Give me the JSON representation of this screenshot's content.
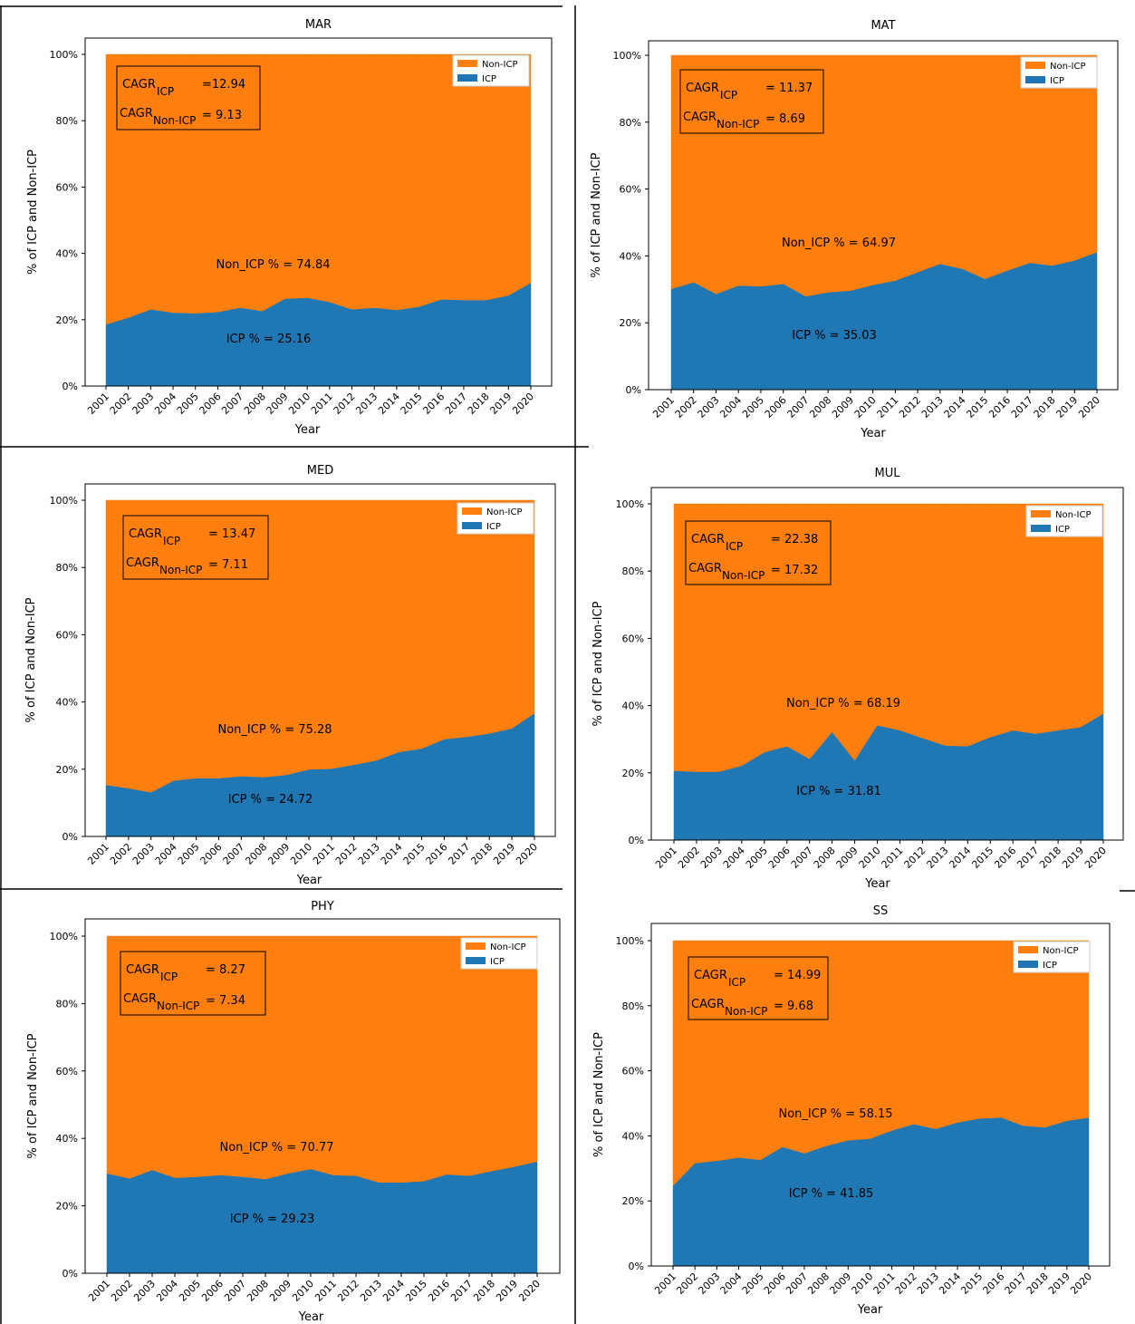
{
  "colors": {
    "icp": "#1f77b4",
    "non_icp": "#ff7f0e",
    "frame": "#000000"
  },
  "chart_data": [
    {
      "type": "area",
      "stacked": "percent",
      "title": "MAR",
      "xlabel": "Year",
      "ylabel": "% of ICP and Non-ICP",
      "x": [
        "2001",
        "2002",
        "2003",
        "2004",
        "2005",
        "2006",
        "2007",
        "2008",
        "2009",
        "2010",
        "2011",
        "2012",
        "2013",
        "2014",
        "2015",
        "2016",
        "2017",
        "2018",
        "2019",
        "2020"
      ],
      "yticks": [
        "0%",
        "20%",
        "40%",
        "60%",
        "80%",
        "100%"
      ],
      "ylim": [
        0,
        100
      ],
      "legend_position": "top-right",
      "series": [
        {
          "name": "ICP",
          "values": [
            18.5,
            20.5,
            23,
            22,
            21.8,
            22.2,
            23.5,
            22.5,
            26.2,
            26.5,
            25.2,
            23,
            23.5,
            22.8,
            23.8,
            26,
            25.8,
            25.8,
            27.2,
            31
          ]
        },
        {
          "name": "Non-ICP",
          "values": [
            81.5,
            79.5,
            77,
            78,
            78.2,
            77.8,
            76.5,
            77.5,
            73.8,
            73.5,
            74.8,
            77,
            76.5,
            77.2,
            76.2,
            74,
            74.2,
            74.2,
            72.8,
            69
          ]
        }
      ],
      "annotations": {
        "cagr_label": "CAGR",
        "cagr_icp_sub": "ICP",
        "cagr_icp_value": "=12.94",
        "cagr_non_sub": "Non-ICP",
        "cagr_non_value": "= 9.13",
        "non_icp_pct": "Non_ICP % = 74.84",
        "icp_pct": "ICP % = 25.16"
      }
    },
    {
      "type": "area",
      "stacked": "percent",
      "title": "MAT",
      "xlabel": "Year",
      "ylabel": "% of ICP and Non-ICP",
      "x": [
        "2001",
        "2002",
        "2003",
        "2004",
        "2005",
        "2006",
        "2007",
        "2008",
        "2009",
        "2010",
        "2011",
        "2012",
        "2013",
        "2014",
        "2015",
        "2016",
        "2017",
        "2018",
        "2019",
        "2020"
      ],
      "yticks": [
        "0%",
        "20%",
        "40%",
        "60%",
        "80%",
        "100%"
      ],
      "ylim": [
        0,
        100
      ],
      "legend_position": "top-right",
      "series": [
        {
          "name": "ICP",
          "values": [
            30,
            32,
            28.5,
            31,
            30.8,
            31.5,
            27.8,
            29,
            29.5,
            31.2,
            32.5,
            35,
            37.5,
            36,
            33,
            35.5,
            37.8,
            37,
            38.5,
            41
          ]
        },
        {
          "name": "Non-ICP",
          "values": [
            70,
            68,
            71.5,
            69,
            69.2,
            68.5,
            72.2,
            71,
            70.5,
            68.8,
            67.5,
            65,
            62.5,
            64,
            67,
            64.5,
            62.2,
            63,
            61.5,
            59
          ]
        }
      ],
      "annotations": {
        "cagr_label": "CAGR",
        "cagr_icp_sub": "ICP",
        "cagr_icp_value": "= 11.37",
        "cagr_non_sub": "Non-ICP",
        "cagr_non_value": "= 8.69",
        "non_icp_pct": "Non_ICP % = 64.97",
        "icp_pct": "ICP % = 35.03"
      }
    },
    {
      "type": "area",
      "stacked": "percent",
      "title": "MED",
      "xlabel": "Year",
      "ylabel": "% of ICP and Non-ICP",
      "x": [
        "2001",
        "2002",
        "2003",
        "2004",
        "2005",
        "2006",
        "2007",
        "2008",
        "2009",
        "2010",
        "2011",
        "2012",
        "2013",
        "2014",
        "2015",
        "2016",
        "2017",
        "2018",
        "2019",
        "2020"
      ],
      "yticks": [
        "0%",
        "20%",
        "40%",
        "60%",
        "80%",
        "100%"
      ],
      "ylim": [
        0,
        100
      ],
      "legend_position": "top-right",
      "series": [
        {
          "name": "ICP",
          "values": [
            15.2,
            14.2,
            13,
            16.5,
            17.2,
            17.2,
            17.8,
            17.5,
            18.2,
            19.8,
            20,
            21.2,
            22.5,
            25,
            26,
            28.8,
            29.5,
            30.5,
            32,
            36.5
          ]
        },
        {
          "name": "Non-ICP",
          "values": [
            84.8,
            85.8,
            87,
            83.5,
            82.8,
            82.8,
            82.2,
            82.5,
            81.8,
            80.2,
            80,
            78.8,
            77.5,
            75,
            74,
            71.2,
            70.5,
            69.5,
            68,
            63.5
          ]
        }
      ],
      "annotations": {
        "cagr_label": "CAGR",
        "cagr_icp_sub": "ICP",
        "cagr_icp_value": "= 13.47",
        "cagr_non_sub": "Non-ICP",
        "cagr_non_value": "= 7.11",
        "non_icp_pct": "Non_ICP % = 75.28",
        "icp_pct": "ICP % = 24.72"
      }
    },
    {
      "type": "area",
      "stacked": "percent",
      "title": "MUL",
      "xlabel": "Year",
      "ylabel": "% of ICP and Non-ICP",
      "x": [
        "2001",
        "2002",
        "2003",
        "2004",
        "2005",
        "2006",
        "2007",
        "2008",
        "2009",
        "2010",
        "2011",
        "2012",
        "2013",
        "2014",
        "2015",
        "2016",
        "2017",
        "2018",
        "2019",
        "2020"
      ],
      "yticks": [
        "0%",
        "20%",
        "40%",
        "60%",
        "80%",
        "100%"
      ],
      "ylim": [
        0,
        100
      ],
      "legend_position": "top-right",
      "series": [
        {
          "name": "ICP",
          "values": [
            20.5,
            20.2,
            20.2,
            22,
            26,
            27.8,
            24,
            32,
            23.5,
            34,
            32.5,
            30.2,
            28,
            27.8,
            30.5,
            32.5,
            31.5,
            32.5,
            33.5,
            37.5
          ]
        },
        {
          "name": "Non-ICP",
          "values": [
            79.5,
            79.8,
            79.8,
            78,
            74,
            72.2,
            76,
            68,
            76.5,
            66,
            67.5,
            69.8,
            72,
            72.2,
            69.5,
            67.5,
            68.5,
            67.5,
            66.5,
            62.5
          ]
        }
      ],
      "annotations": {
        "cagr_label": "CAGR",
        "cagr_icp_sub": "ICP",
        "cagr_icp_value": "= 22.38",
        "cagr_non_sub": "Non-ICP",
        "cagr_non_value": "= 17.32",
        "non_icp_pct": "Non_ICP % = 68.19",
        "icp_pct": "ICP % = 31.81"
      }
    },
    {
      "type": "area",
      "stacked": "percent",
      "title": "PHY",
      "xlabel": "Year",
      "ylabel": "% of ICP and Non-ICP",
      "x": [
        "2001",
        "2002",
        "2003",
        "2004",
        "2005",
        "2006",
        "2007",
        "2008",
        "2009",
        "2010",
        "2011",
        "2012",
        "2013",
        "2014",
        "2015",
        "2016",
        "2017",
        "2018",
        "2019",
        "2020"
      ],
      "yticks": [
        "0%",
        "20%",
        "40%",
        "60%",
        "80%",
        "100%"
      ],
      "ylim": [
        0,
        100
      ],
      "legend_position": "top-right",
      "series": [
        {
          "name": "ICP",
          "values": [
            29.5,
            28,
            30.5,
            28.2,
            28.5,
            29,
            28.5,
            27.8,
            29.5,
            30.8,
            29,
            28.8,
            26.8,
            26.8,
            27.2,
            29.2,
            28.8,
            30.2,
            31.5,
            33
          ]
        },
        {
          "name": "Non-ICP",
          "values": [
            70.5,
            72,
            69.5,
            71.8,
            71.5,
            71,
            71.5,
            72.2,
            70.5,
            69.2,
            71,
            71.2,
            73.2,
            73.2,
            72.8,
            70.8,
            71.2,
            69.8,
            68.5,
            67
          ]
        }
      ],
      "annotations": {
        "cagr_label": "CAGR",
        "cagr_icp_sub": "ICP",
        "cagr_icp_value": "= 8.27",
        "cagr_non_sub": "Non-ICP",
        "cagr_non_value": "= 7.34",
        "non_icp_pct": "Non_ICP % = 70.77",
        "icp_pct": "ICP % = 29.23"
      }
    },
    {
      "type": "area",
      "stacked": "percent",
      "title": "SS",
      "xlabel": "Year",
      "ylabel": "% of ICP and Non-ICP",
      "x": [
        "2001",
        "2002",
        "2003",
        "2004",
        "2005",
        "2006",
        "2007",
        "2008",
        "2009",
        "2010",
        "2011",
        "2012",
        "2013",
        "2014",
        "2015",
        "2016",
        "2017",
        "2018",
        "2019",
        "2020"
      ],
      "yticks": [
        "0%",
        "20%",
        "40%",
        "60%",
        "80%",
        "100%"
      ],
      "ylim": [
        0,
        100
      ],
      "legend_position": "top-right",
      "series": [
        {
          "name": "ICP",
          "values": [
            24.5,
            31.5,
            32.2,
            33.2,
            32.5,
            36.5,
            34.5,
            36.8,
            38.5,
            39,
            41.5,
            43.5,
            42,
            44,
            45.2,
            45.5,
            43,
            42.5,
            44.5,
            45.5
          ]
        },
        {
          "name": "Non-ICP",
          "values": [
            75.5,
            68.5,
            67.8,
            66.8,
            67.5,
            63.5,
            65.5,
            63.2,
            61.5,
            61,
            58.5,
            56.5,
            58,
            56,
            54.8,
            54.5,
            57,
            57.5,
            55.5,
            54.5
          ]
        }
      ],
      "annotations": {
        "cagr_label": "CAGR",
        "cagr_icp_sub": "ICP",
        "cagr_icp_value": "= 14.99",
        "cagr_non_sub": "Non-ICP",
        "cagr_non_value": "= 9.68",
        "non_icp_pct": "Non_ICP % = 58.15",
        "icp_pct": "ICP % = 41.85"
      }
    }
  ]
}
